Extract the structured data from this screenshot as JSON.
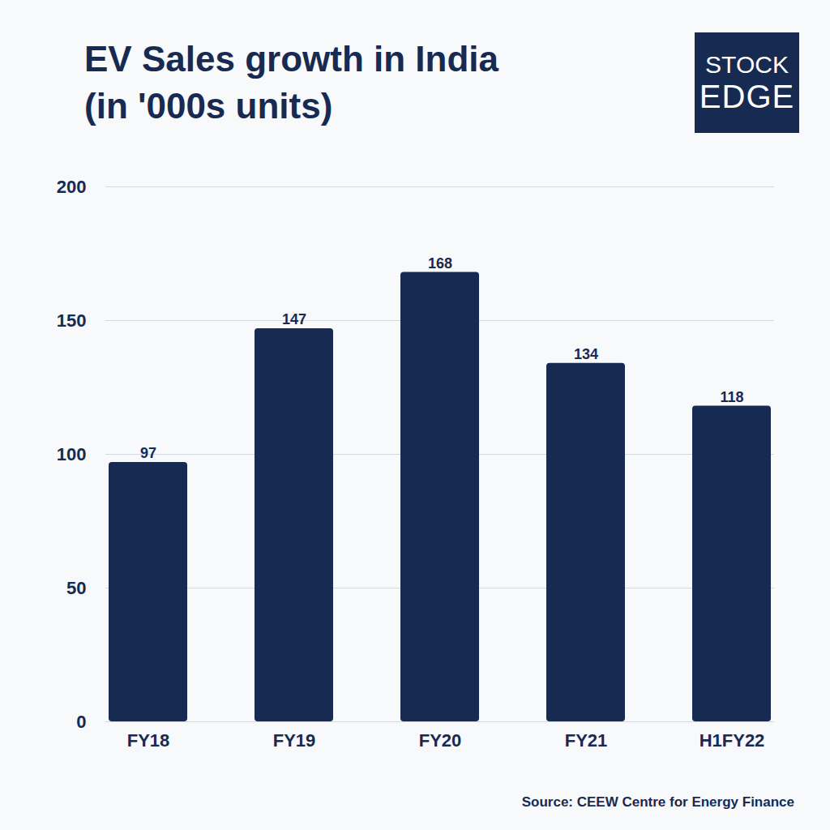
{
  "chart_data": {
    "type": "bar",
    "title": "EV Sales growth in India",
    "subtitle": "(in '000s units)",
    "logo": [
      "STOCK",
      "EDGE"
    ],
    "caption": "Source: CEEW Centre for Energy Finance",
    "categories": [
      "FY18",
      "FY19",
      "FY20",
      "FY21",
      "H1FY22"
    ],
    "values": [
      97,
      147,
      168,
      134,
      118
    ],
    "color": "#172a52",
    "ylim": [
      0,
      200
    ],
    "yticks": [
      0,
      50,
      100,
      150,
      200
    ],
    "grid": true,
    "data_labels": true
  }
}
